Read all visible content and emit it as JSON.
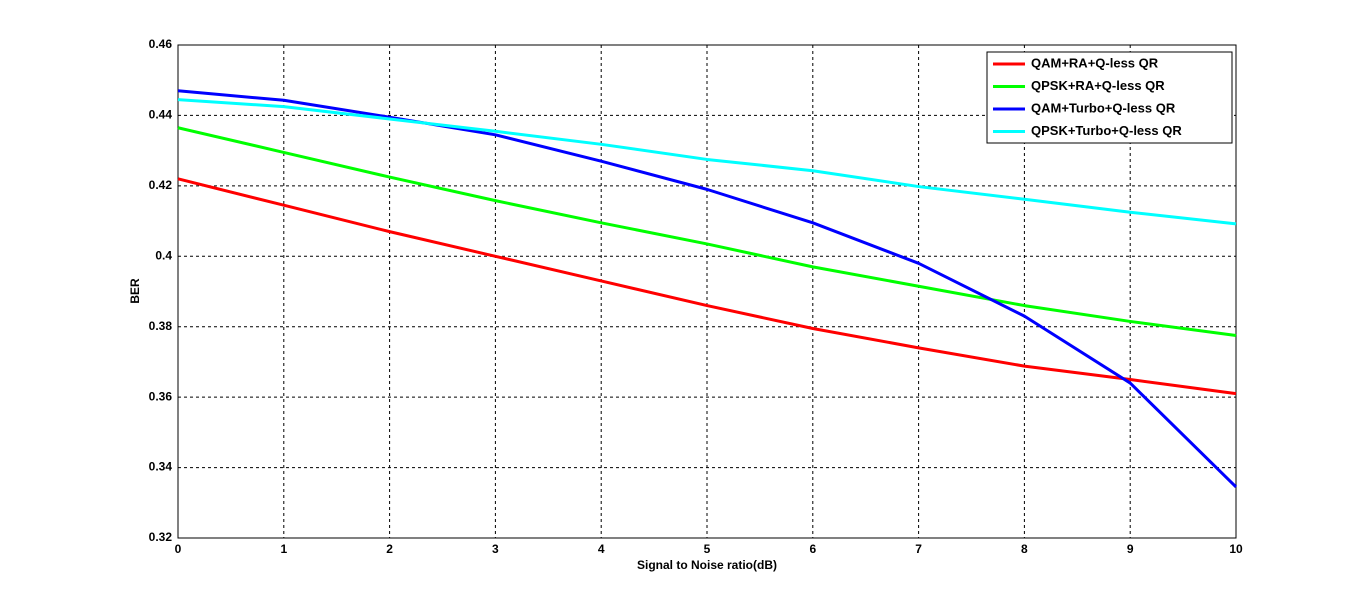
{
  "chart_data": {
    "type": "line",
    "xlabel": "Signal to Noise ratio(dB)",
    "ylabel": "BER",
    "x": [
      0,
      1,
      2,
      3,
      4,
      5,
      6,
      7,
      8,
      9,
      10
    ],
    "series": [
      {
        "name": "QAM+RA+Q-less QR",
        "color": "#ff0000",
        "values": [
          0.422,
          0.4145,
          0.407,
          0.4,
          0.393,
          0.386,
          0.3795,
          0.374,
          0.3688,
          0.365,
          0.361
        ]
      },
      {
        "name": "QPSK+RA+Q-less QR",
        "color": "#00ff00",
        "values": [
          0.4365,
          0.4295,
          0.4225,
          0.4158,
          0.4095,
          0.4035,
          0.397,
          0.3915,
          0.386,
          0.3815,
          0.3775
        ]
      },
      {
        "name": "QAM+Turbo+Q-less QR",
        "color": "#0000ff",
        "values": [
          0.447,
          0.4443,
          0.4395,
          0.4345,
          0.427,
          0.419,
          0.4095,
          0.398,
          0.383,
          0.364,
          0.3345
        ]
      },
      {
        "name": "QPSK+Turbo+Q-less QR",
        "color": "#00ffff",
        "values": [
          0.4445,
          0.4425,
          0.439,
          0.4355,
          0.4318,
          0.4275,
          0.4243,
          0.4198,
          0.4162,
          0.4125,
          0.4092
        ]
      }
    ],
    "xlim": [
      0,
      10
    ],
    "xticks": [
      0,
      1,
      2,
      3,
      4,
      5,
      6,
      7,
      8,
      9,
      10
    ],
    "ylim": [
      0.32,
      0.46
    ],
    "yticks": [
      0.32,
      0.34,
      0.36,
      0.38,
      0.4,
      0.42,
      0.44,
      0.46
    ],
    "grid": true,
    "legend": "upper right"
  }
}
